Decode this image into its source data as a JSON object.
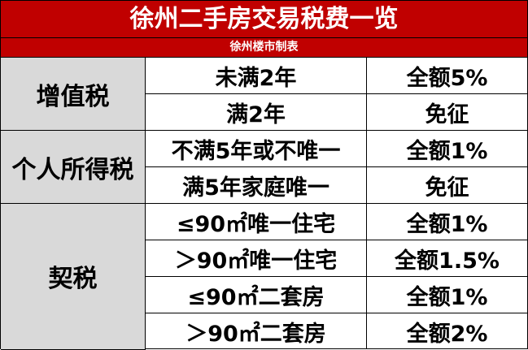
{
  "title": "徐州二手房交易税费一览",
  "subtitle": "徐州楼市制表",
  "colors": {
    "header": "#c00000",
    "category": "#d9d9d9"
  },
  "groups": [
    {
      "tax": "增值税",
      "rows": [
        {
          "condition": "未满2年",
          "rate": "全额5%"
        },
        {
          "condition": "满2年",
          "rate": "免征"
        }
      ]
    },
    {
      "tax": "个人所得税",
      "rows": [
        {
          "condition": "不满5年或不唯一",
          "rate": "全额1%"
        },
        {
          "condition": "满5年家庭唯一",
          "rate": "免征"
        }
      ]
    },
    {
      "tax": "契税",
      "rows": [
        {
          "condition": "≤90㎡唯一住宅",
          "rate": "全额1%"
        },
        {
          "condition": "＞90㎡唯一住宅",
          "rate": "全额1.5%"
        },
        {
          "condition": "≤90㎡二套房",
          "rate": "全额1%"
        },
        {
          "condition": "＞90㎡二套房",
          "rate": "全额2%"
        }
      ]
    }
  ]
}
